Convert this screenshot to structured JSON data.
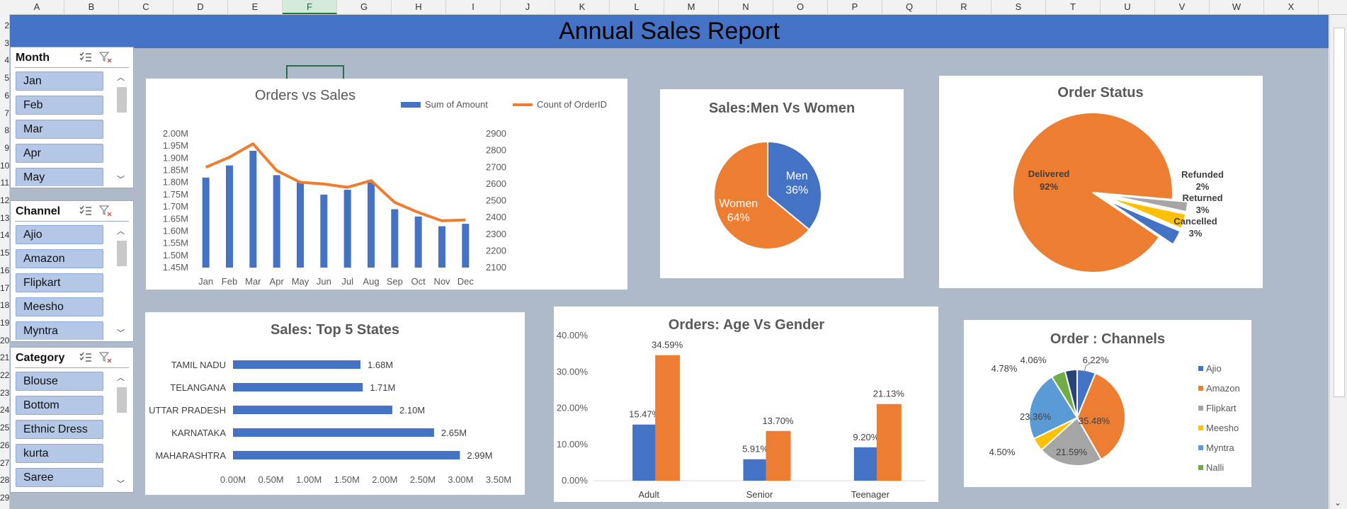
{
  "sheet": {
    "columns": [
      "A",
      "B",
      "C",
      "D",
      "E",
      "F",
      "G",
      "H",
      "I",
      "J",
      "K",
      "L",
      "M",
      "N",
      "O",
      "P",
      "Q",
      "R",
      "S",
      "T",
      "U",
      "V",
      "W",
      "X"
    ],
    "rows": [
      "2",
      "3",
      "4",
      "5",
      "6",
      "7",
      "8",
      "9",
      "10",
      "11",
      "12",
      "13",
      "14",
      "15",
      "16",
      "17",
      "18",
      "19",
      "20",
      "21",
      "22",
      "23",
      "24",
      "25",
      "26",
      "27",
      "28",
      "29"
    ],
    "selected_column": "F"
  },
  "banner": {
    "title": "Annual Sales Report",
    "color": "#4472c4"
  },
  "slicers": {
    "month": {
      "title": "Month",
      "items": [
        "Jan",
        "Feb",
        "Mar",
        "Apr",
        "May"
      ]
    },
    "channel": {
      "title": "Channel",
      "items": [
        "Ajio",
        "Amazon",
        "Flipkart",
        "Meesho",
        "Myntra"
      ]
    },
    "category": {
      "title": "Category",
      "items": [
        "Blouse",
        "Bottom",
        "Ethnic Dress",
        "kurta",
        "Saree"
      ]
    }
  },
  "chart_data": [
    {
      "id": "orders_vs_sales",
      "type": "bar",
      "title": "Orders vs Sales",
      "categories": [
        "Jan",
        "Feb",
        "Mar",
        "Apr",
        "May",
        "Jun",
        "Jul",
        "Aug",
        "Sep",
        "Oct",
        "Nov",
        "Dec"
      ],
      "series": [
        {
          "name": "Sum of Amount",
          "type": "bar",
          "axis": "left",
          "color": "#4472c4",
          "values": [
            1.82,
            1.87,
            1.93,
            1.83,
            1.8,
            1.75,
            1.77,
            1.8,
            1.69,
            1.66,
            1.62,
            1.63
          ]
        },
        {
          "name": "Count of OrderID",
          "type": "line",
          "axis": "right",
          "color": "#ed7d31",
          "values": [
            2700,
            2760,
            2840,
            2680,
            2610,
            2600,
            2580,
            2620,
            2490,
            2430,
            2380,
            2385
          ]
        }
      ],
      "y_left": {
        "range": [
          1.45,
          2.0
        ],
        "ticks": [
          "1.45M",
          "1.50M",
          "1.55M",
          "1.60M",
          "1.65M",
          "1.70M",
          "1.75M",
          "1.80M",
          "1.85M",
          "1.90M",
          "1.95M",
          "2.00M"
        ]
      },
      "y_right": {
        "range": [
          2100,
          2900
        ],
        "ticks": [
          "2100",
          "2200",
          "2300",
          "2400",
          "2500",
          "2600",
          "2700",
          "2800",
          "2900"
        ]
      },
      "legend": "top-right"
    },
    {
      "id": "men_vs_women",
      "type": "pie",
      "title": "Sales:Men Vs Women",
      "slices": [
        {
          "label": "Men",
          "value": 36,
          "display": "36%",
          "color": "#4472c4"
        },
        {
          "label": "Women",
          "value": 64,
          "display": "64%",
          "color": "#ed7d31"
        }
      ]
    },
    {
      "id": "order_status",
      "type": "pie",
      "title": "Order Status",
      "slices": [
        {
          "label": "Delivered",
          "value": 92,
          "display": "92%",
          "color": "#ed7d31"
        },
        {
          "label": "Refunded",
          "value": 2,
          "display": "2%",
          "color": "#a5a5a5"
        },
        {
          "label": "Returned",
          "value": 3,
          "display": "3%",
          "color": "#ffc000"
        },
        {
          "label": "Cancelled",
          "value": 3,
          "display": "3%",
          "color": "#4472c4"
        }
      ]
    },
    {
      "id": "top_states",
      "type": "bar",
      "orientation": "horizontal",
      "title": "Sales: Top 5 States",
      "categories": [
        "TAMIL NADU",
        "TELANGANA",
        "UTTAR PRADESH",
        "KARNATAKA",
        "MAHARASHTRA"
      ],
      "values": [
        1.68,
        1.71,
        2.1,
        2.65,
        2.99
      ],
      "value_labels": [
        "1.68M",
        "1.71M",
        "2.10M",
        "2.65M",
        "2.99M"
      ],
      "xlim": [
        0,
        3.5
      ],
      "x_ticks": [
        "0.00M",
        "0.50M",
        "1.00M",
        "1.50M",
        "2.00M",
        "2.50M",
        "3.00M",
        "3.50M"
      ],
      "color": "#4472c4"
    },
    {
      "id": "age_vs_gender",
      "type": "bar",
      "title": "Orders: Age Vs Gender",
      "categories": [
        "Adult",
        "Senior",
        "Teenager"
      ],
      "series": [
        {
          "values": [
            15.47,
            5.91,
            9.2
          ],
          "labels": [
            "15.47%",
            "5.91%",
            "9.20%"
          ],
          "color": "#4472c4"
        },
        {
          "values": [
            34.59,
            13.7,
            21.13
          ],
          "labels": [
            "34.59%",
            "13.70%",
            "21.13%"
          ],
          "color": "#ed7d31"
        }
      ],
      "ylim": [
        0,
        40
      ],
      "y_ticks": [
        "0.00%",
        "10.00%",
        "20.00%",
        "30.00%",
        "40.00%"
      ]
    },
    {
      "id": "order_channels",
      "type": "pie",
      "title": "Order : Channels",
      "slices": [
        {
          "label": "Ajio",
          "value": 6.22,
          "display": "6.22%",
          "color": "#4472c4"
        },
        {
          "label": "Amazon",
          "value": 35.48,
          "display": "35.48%",
          "color": "#ed7d31"
        },
        {
          "label": "Flipkart",
          "value": 21.59,
          "display": "21.59%",
          "color": "#a5a5a5"
        },
        {
          "label": "Meesho",
          "value": 4.5,
          "display": "4.50%",
          "color": "#ffc000"
        },
        {
          "label": "Myntra",
          "value": 23.36,
          "display": "23.36%",
          "color": "#5b9bd5"
        },
        {
          "label": "Nalli",
          "value": 4.78,
          "display": "4.78%",
          "color": "#70ad47"
        },
        {
          "label": "",
          "value": 4.06,
          "display": "4.06%",
          "color": "#264478"
        }
      ],
      "legend": "right",
      "legend_entries": [
        "Ajio",
        "Amazon",
        "Flipkart",
        "Meesho",
        "Myntra",
        "Nalli"
      ]
    }
  ]
}
